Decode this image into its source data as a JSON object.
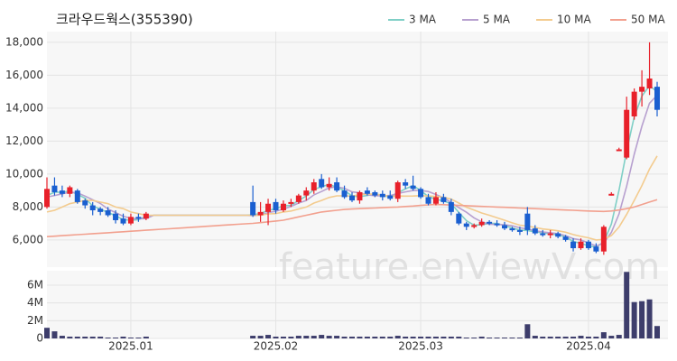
{
  "chart_data": {
    "type": "candlestick",
    "title": "크라우드웍스(355390)",
    "watermark": "feature.enViewV.com",
    "categories": [
      null,
      null,
      null,
      null,
      null,
      null,
      null,
      null,
      null,
      null,
      null,
      "2025.01",
      null,
      null,
      null,
      null,
      null,
      null,
      null,
      null,
      null,
      null,
      null,
      null,
      null,
      null,
      null,
      null,
      null,
      null,
      "2025.02",
      null,
      null,
      null,
      null,
      null,
      null,
      null,
      null,
      null,
      null,
      null,
      null,
      null,
      null,
      null,
      null,
      null,
      null,
      "2025.03",
      null,
      null,
      null,
      null,
      null,
      null,
      null,
      null,
      null,
      null,
      null,
      null,
      null,
      null,
      null,
      null,
      null,
      null,
      null,
      null,
      null,
      "2025.04",
      null,
      null,
      null,
      null,
      null,
      null,
      null,
      null,
      null
    ],
    "up_color": "#e8202a",
    "down_color": "#1a5fd0",
    "volume_color": "#3d3d6b",
    "ohlc": [
      [
        8000,
        9800,
        7900,
        9100
      ],
      [
        9300,
        9800,
        8700,
        8900
      ],
      [
        9000,
        9300,
        8600,
        8800
      ],
      [
        8800,
        9300,
        8600,
        9200
      ],
      [
        9000,
        9100,
        8200,
        8300
      ],
      [
        8400,
        8500,
        7900,
        8100
      ],
      [
        8100,
        8300,
        7500,
        7800
      ],
      [
        7900,
        8000,
        7500,
        7700
      ],
      [
        7800,
        8000,
        7400,
        7500
      ],
      [
        7600,
        7800,
        7000,
        7200
      ],
      [
        7300,
        7600,
        6900,
        7000
      ],
      [
        7000,
        7600,
        6900,
        7400
      ],
      [
        7400,
        7600,
        7100,
        7300
      ],
      [
        7300,
        7700,
        7200,
        7600
      ],
      null,
      null,
      null,
      null,
      null,
      null,
      null,
      null,
      null,
      null,
      null,
      null,
      null,
      [
        8300,
        9300,
        7400,
        7500
      ],
      [
        7500,
        8300,
        7100,
        7700
      ],
      [
        7700,
        8500,
        6900,
        8200
      ],
      [
        8300,
        8500,
        7600,
        7800
      ],
      [
        7800,
        8400,
        7700,
        8200
      ],
      [
        8200,
        8500,
        8000,
        8300
      ],
      [
        8300,
        8800,
        8200,
        8700
      ],
      [
        8700,
        9200,
        8400,
        9000
      ],
      [
        9000,
        9700,
        8800,
        9500
      ],
      [
        9700,
        10000,
        9100,
        9200
      ],
      [
        9200,
        9800,
        9000,
        9400
      ],
      [
        9500,
        9800,
        8900,
        9000
      ],
      [
        9000,
        9300,
        8500,
        8600
      ],
      [
        8700,
        8900,
        8300,
        8400
      ],
      [
        8400,
        9000,
        8200,
        8900
      ],
      [
        9000,
        9200,
        8700,
        8800
      ],
      [
        8900,
        9000,
        8600,
        8700
      ],
      [
        8800,
        9000,
        8400,
        8600
      ],
      [
        8700,
        9000,
        8400,
        8500
      ],
      [
        8500,
        9600,
        8300,
        9500
      ],
      [
        9500,
        9700,
        9100,
        9300
      ],
      [
        9300,
        9900,
        9000,
        9100
      ],
      [
        9100,
        9200,
        8500,
        8600
      ],
      [
        8600,
        8800,
        8100,
        8200
      ],
      [
        8200,
        8900,
        8100,
        8600
      ],
      [
        8600,
        8800,
        8200,
        8300
      ],
      [
        8300,
        8500,
        7500,
        7700
      ],
      [
        7600,
        7700,
        6900,
        7000
      ],
      [
        7000,
        7100,
        6600,
        6800
      ],
      [
        6800,
        7000,
        6700,
        6900
      ],
      [
        6900,
        7300,
        6800,
        7100
      ],
      [
        7100,
        7200,
        6900,
        7000
      ],
      [
        7000,
        7200,
        6800,
        6900
      ],
      [
        6900,
        7100,
        6600,
        6700
      ],
      [
        6700,
        6800,
        6500,
        6600
      ],
      [
        6600,
        6800,
        6300,
        6500
      ],
      [
        7600,
        8000,
        6300,
        6600
      ],
      [
        6700,
        6900,
        6300,
        6400
      ],
      [
        6400,
        6600,
        6200,
        6300
      ],
      [
        6300,
        6600,
        6100,
        6400
      ],
      [
        6400,
        6500,
        6100,
        6200
      ],
      [
        6200,
        6300,
        5900,
        6000
      ],
      [
        5900,
        6100,
        5300,
        5500
      ],
      [
        5500,
        6100,
        5400,
        5900
      ],
      [
        5900,
        6000,
        5400,
        5500
      ],
      [
        5600,
        5800,
        5200,
        5300
      ],
      [
        5300,
        6900,
        5100,
        6800
      ],
      [
        8700,
        8900,
        8700,
        8800
      ],
      [
        11400,
        11600,
        11400,
        11500
      ],
      [
        11000,
        14700,
        10900,
        13900
      ],
      [
        13500,
        15200,
        13300,
        15000
      ],
      [
        15000,
        16300,
        14100,
        15300
      ],
      [
        15200,
        18000,
        14800,
        15800
      ],
      [
        15300,
        15600,
        13500,
        13900
      ]
    ],
    "volume": [
      1200000,
      800000,
      300000,
      200000,
      200000,
      200000,
      200000,
      200000,
      100000,
      100000,
      200000,
      100000,
      100000,
      200000,
      null,
      null,
      null,
      null,
      null,
      null,
      null,
      null,
      null,
      null,
      null,
      null,
      null,
      300000,
      300000,
      400000,
      200000,
      200000,
      200000,
      300000,
      300000,
      300000,
      400000,
      300000,
      300000,
      200000,
      200000,
      200000,
      200000,
      200000,
      200000,
      200000,
      300000,
      200000,
      200000,
      200000,
      200000,
      200000,
      200000,
      200000,
      200000,
      100000,
      100000,
      200000,
      100000,
      100000,
      100000,
      100000,
      100000,
      1600000,
      300000,
      200000,
      200000,
      200000,
      200000,
      200000,
      300000,
      200000,
      200000,
      700000,
      300000,
      400000,
      7500000,
      4100000,
      4200000,
      4400000,
      1400000
    ],
    "series": [
      {
        "name": "3 MA",
        "color": "#7fcfc6",
        "values": [
          8700,
          8900,
          8900,
          8970,
          8770,
          8530,
          8070,
          7870,
          7670,
          7470,
          7230,
          7200,
          7230,
          7430,
          7500,
          7500,
          7500,
          7500,
          7500,
          7500,
          7500,
          7500,
          7500,
          7500,
          7500,
          7500,
          7500,
          7530,
          7600,
          7800,
          7900,
          8070,
          8100,
          8400,
          8670,
          9070,
          9230,
          9370,
          9200,
          9000,
          8670,
          8630,
          8700,
          8800,
          8700,
          8600,
          8870,
          9100,
          9300,
          9000,
          8630,
          8470,
          8370,
          8200,
          7670,
          7170,
          6900,
          6930,
          7000,
          7000,
          6870,
          6730,
          6600,
          6570,
          6500,
          6430,
          6370,
          6300,
          6200,
          5900,
          5800,
          5630,
          5570,
          5870,
          6970,
          9030,
          11400,
          13470,
          14730,
          15370,
          15000
        ]
      },
      {
        "name": "5 MA",
        "color": "#b7a0cf",
        "values": [
          8600,
          8700,
          8800,
          8900,
          8860,
          8660,
          8440,
          8220,
          7880,
          7660,
          7440,
          7320,
          7280,
          7300,
          7500,
          7500,
          7500,
          7500,
          7500,
          7500,
          7500,
          7500,
          7500,
          7500,
          7500,
          7500,
          7500,
          7480,
          7520,
          7660,
          7740,
          7880,
          8040,
          8240,
          8400,
          8740,
          8940,
          9160,
          9220,
          9140,
          8920,
          8860,
          8740,
          8680,
          8680,
          8700,
          8820,
          8920,
          9000,
          9000,
          8940,
          8760,
          8560,
          8280,
          7960,
          7680,
          7340,
          7100,
          6960,
          6940,
          6920,
          6860,
          6740,
          6660,
          6560,
          6480,
          6440,
          6380,
          6260,
          6080,
          6000,
          5820,
          5640,
          5800,
          6460,
          7580,
          9260,
          11200,
          12900,
          14300,
          14780
        ]
      },
      {
        "name": "10 MA",
        "color": "#f3cb8e",
        "values": [
          7700,
          7800,
          8000,
          8200,
          8300,
          8400,
          8400,
          8300,
          8200,
          8000,
          7900,
          7700,
          7600,
          7500,
          7500,
          7500,
          7500,
          7500,
          7500,
          7500,
          7500,
          7500,
          7500,
          7500,
          7500,
          7500,
          7500,
          7500,
          7500,
          7580,
          7600,
          7700,
          7760,
          7880,
          8000,
          8240,
          8400,
          8580,
          8680,
          8680,
          8660,
          8750,
          8800,
          8770,
          8730,
          8640,
          8670,
          8660,
          8670,
          8690,
          8670,
          8640,
          8590,
          8480,
          8240,
          7990,
          7820,
          7640,
          7500,
          7350,
          7200,
          7040,
          6900,
          6840,
          6760,
          6670,
          6620,
          6560,
          6470,
          6330,
          6220,
          6130,
          6000,
          6030,
          6270,
          6790,
          7550,
          8400,
          9300,
          10300,
          11100
        ]
      },
      {
        "name": "50 MA",
        "color": "#f2a08e",
        "values": [
          6200,
          6230,
          6260,
          6290,
          6320,
          6350,
          6380,
          6410,
          6440,
          6470,
          6500,
          6530,
          6560,
          6590,
          6620,
          6650,
          6680,
          6710,
          6740,
          6770,
          6800,
          6830,
          6860,
          6890,
          6920,
          6950,
          6980,
          7010,
          7050,
          7100,
          7150,
          7200,
          7300,
          7400,
          7500,
          7600,
          7700,
          7750,
          7800,
          7850,
          7880,
          7900,
          7920,
          7940,
          7960,
          7980,
          8000,
          8030,
          8060,
          8100,
          8130,
          8150,
          8140,
          8120,
          8100,
          8080,
          8060,
          8040,
          8020,
          8000,
          7980,
          7960,
          7940,
          7920,
          7900,
          7880,
          7860,
          7840,
          7820,
          7800,
          7780,
          7760,
          7740,
          7730,
          7760,
          7820,
          7900,
          8000,
          8150,
          8300,
          8450
        ]
      }
    ],
    "ylim": [
      4350,
      18650
    ],
    "yticks": [
      {
        "value": 6000,
        "label": "6,000"
      },
      {
        "value": 8000,
        "label": "8,000"
      },
      {
        "value": 10000,
        "label": "10,000"
      },
      {
        "value": 12000,
        "label": "12,000"
      },
      {
        "value": 14000,
        "label": "14,000"
      },
      {
        "value": 16000,
        "label": "16,000"
      },
      {
        "value": 18000,
        "label": "18,000"
      }
    ],
    "volume_ylim": [
      0,
      7630000
    ],
    "volume_yticks": [
      0,
      {
        "value": 2000000,
        "label": "2M"
      },
      {
        "value": 4000000,
        "label": "4M"
      },
      {
        "value": 6000000,
        "label": "6M"
      }
    ],
    "grid": true
  }
}
